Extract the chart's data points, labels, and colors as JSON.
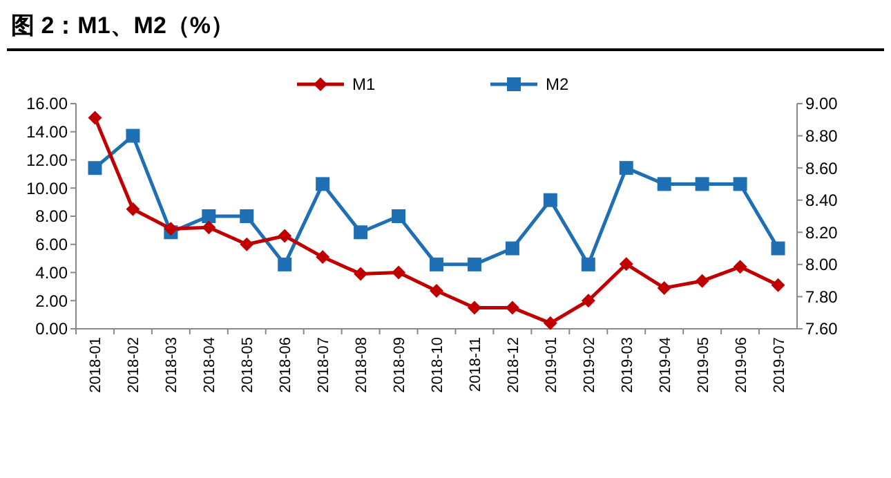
{
  "chart_data": {
    "type": "line",
    "title": "图 2：M1、M2（%）",
    "categories": [
      "2018-01",
      "2018-02",
      "2018-03",
      "2018-04",
      "2018-05",
      "2018-06",
      "2018-07",
      "2018-08",
      "2018-09",
      "2018-10",
      "2018-11",
      "2018-12",
      "2019-01",
      "2019-02",
      "2019-03",
      "2019-04",
      "2019-05",
      "2019-06",
      "2019-07"
    ],
    "series": [
      {
        "name": "M1",
        "color": "#c00000",
        "marker": "diamond",
        "values": [
          15.0,
          8.5,
          7.1,
          7.2,
          6.0,
          6.6,
          5.1,
          3.9,
          4.0,
          2.7,
          1.5,
          1.5,
          0.4,
          2.0,
          4.6,
          2.9,
          3.4,
          4.4,
          3.1
        ]
      },
      {
        "name": "M2",
        "color": "#1f6fb4",
        "marker": "square",
        "axis": "y2",
        "values": [
          8.6,
          8.8,
          8.2,
          8.3,
          8.3,
          8.0,
          8.5,
          8.2,
          8.3,
          8.0,
          8.0,
          8.1,
          8.4,
          8.0,
          8.6,
          8.5,
          8.5,
          8.5,
          8.1
        ]
      }
    ],
    "ylim": [
      0,
      16
    ],
    "yticks": [
      {
        "value": 0,
        "label": "0.00"
      },
      {
        "value": 2,
        "label": "2.00"
      },
      {
        "value": 4,
        "label": "4.00"
      },
      {
        "value": 6,
        "label": "6.00"
      },
      {
        "value": 8,
        "label": "8.00"
      },
      {
        "value": 10,
        "label": "10.00"
      },
      {
        "value": 12,
        "label": "12.00"
      },
      {
        "value": 14,
        "label": "14.00"
      },
      {
        "value": 16,
        "label": "16.00"
      }
    ],
    "y2lim": [
      7.6,
      9.0
    ],
    "y2ticks": [
      {
        "value": 7.6,
        "label": "7.60"
      },
      {
        "value": 7.8,
        "label": "7.80"
      },
      {
        "value": 8.0,
        "label": "8.00"
      },
      {
        "value": 8.2,
        "label": "8.20"
      },
      {
        "value": 8.4,
        "label": "8.40"
      },
      {
        "value": 8.6,
        "label": "8.60"
      },
      {
        "value": 8.8,
        "label": "8.80"
      },
      {
        "value": 9.0,
        "label": "9.00"
      }
    ],
    "legend": "top",
    "grid": false,
    "line_style": "solid"
  }
}
